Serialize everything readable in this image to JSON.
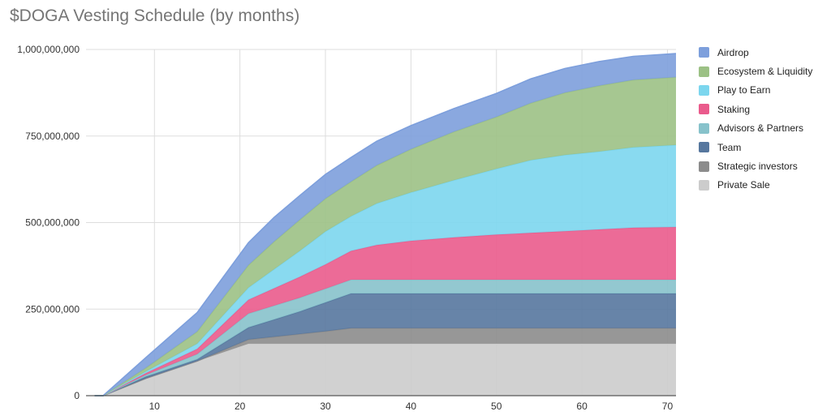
{
  "chart_data": {
    "type": "area",
    "stacked": true,
    "title": "$DOGA Vesting Schedule (by months)",
    "xlabel": "",
    "ylabel": "",
    "xlim": [
      2,
      71
    ],
    "ylim": [
      0,
      1000000000
    ],
    "x_ticks": [
      10,
      20,
      30,
      40,
      50,
      60,
      70
    ],
    "y_ticks": [
      0,
      250000000,
      500000000,
      750000000,
      1000000000
    ],
    "y_tick_labels": [
      "0",
      "250,000,000",
      "500,000,000",
      "750,000,000",
      "1,000,000,000"
    ],
    "grid": true,
    "legend_position": "right",
    "x": [
      3,
      4,
      9,
      15,
      21,
      24,
      27,
      30,
      33,
      36,
      40,
      45,
      50,
      54,
      58,
      62,
      66,
      71
    ],
    "series": [
      {
        "name": "Private Sale",
        "color": "#cccccc",
        "values": [
          0,
          0,
          50000000,
          100000000,
          150000000,
          150000000,
          150000000,
          150000000,
          150000000,
          150000000,
          150000000,
          150000000,
          150000000,
          150000000,
          150000000,
          150000000,
          150000000,
          150000000
        ]
      },
      {
        "name": "Strategic investors",
        "color": "#8c8c8c",
        "values": [
          0,
          0,
          0,
          0,
          12000000,
          20000000,
          28000000,
          36000000,
          45000000,
          45000000,
          45000000,
          45000000,
          45000000,
          45000000,
          45000000,
          45000000,
          45000000,
          45000000
        ]
      },
      {
        "name": "Team",
        "color": "#56779e",
        "values": [
          0,
          0,
          5000000,
          5000000,
          35000000,
          50000000,
          65000000,
          83000000,
          100000000,
          100000000,
          100000000,
          100000000,
          100000000,
          100000000,
          100000000,
          100000000,
          100000000,
          100000000
        ]
      },
      {
        "name": "Advisors & Partners",
        "color": "#87c2cb",
        "values": [
          0,
          0,
          5000000,
          15000000,
          40000000,
          40000000,
          40000000,
          40000000,
          40000000,
          40000000,
          40000000,
          40000000,
          40000000,
          40000000,
          40000000,
          40000000,
          40000000,
          40000000
        ]
      },
      {
        "name": "Staking",
        "color": "#ea5b8c",
        "values": [
          0,
          0,
          5000000,
          15000000,
          40000000,
          50000000,
          60000000,
          70000000,
          83000000,
          100000000,
          112000000,
          122000000,
          130000000,
          135000000,
          140000000,
          145000000,
          150000000,
          152000000
        ]
      },
      {
        "name": "Play to Earn",
        "color": "#7cd6ee",
        "values": [
          0,
          0,
          5000000,
          15000000,
          35000000,
          55000000,
          75000000,
          95000000,
          100000000,
          120000000,
          140000000,
          165000000,
          190000000,
          210000000,
          220000000,
          225000000,
          232000000,
          237000000
        ]
      },
      {
        "name": "Ecosystem & Liquidity",
        "color": "#9cc185",
        "values": [
          0,
          0,
          10000000,
          35000000,
          65000000,
          80000000,
          90000000,
          95000000,
          100000000,
          110000000,
          125000000,
          140000000,
          150000000,
          165000000,
          180000000,
          190000000,
          195000000,
          196000000
        ]
      },
      {
        "name": "Airdrop",
        "color": "#7d9fdc",
        "values": [
          0,
          0,
          30000000,
          55000000,
          65000000,
          70000000,
          70000000,
          70000000,
          70000000,
          70000000,
          68000000,
          67000000,
          68000000,
          70000000,
          70000000,
          70000000,
          68000000,
          68000000
        ]
      }
    ]
  }
}
